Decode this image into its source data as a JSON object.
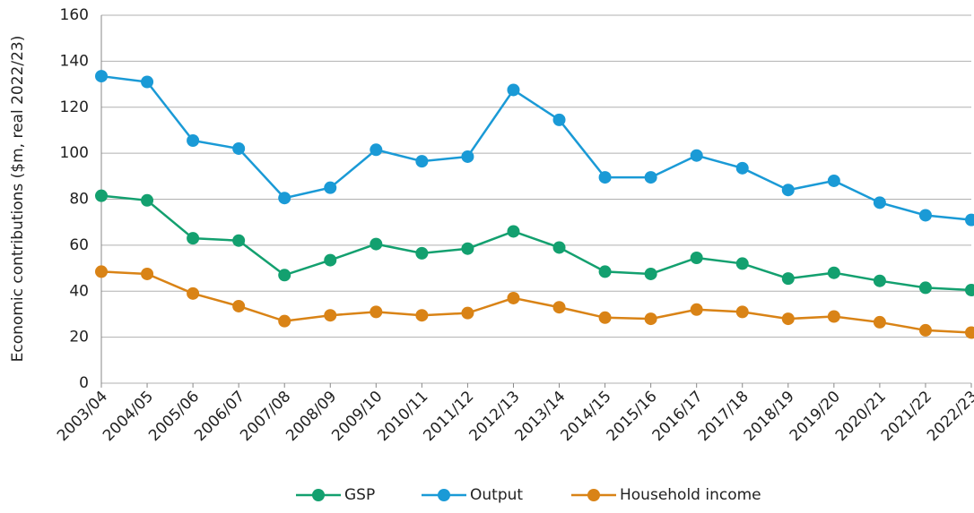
{
  "chart_data": {
    "type": "line",
    "y_label": "Economic contributions ($m, real 2022/23)",
    "categories": [
      "2003/04",
      "2004/05",
      "2005/06",
      "2006/07",
      "2007/08",
      "2008/09",
      "2009/10",
      "2010/11",
      "2011/12",
      "2012/13",
      "2013/14",
      "2014/15",
      "2015/16",
      "2016/17",
      "2017/18",
      "2018/19",
      "2019/20",
      "2020/21",
      "2021/22",
      "2022/23"
    ],
    "series": [
      {
        "name": "GSP",
        "color": "#13a06f",
        "values": [
          81.5,
          79.5,
          63,
          62,
          47,
          53.5,
          60.5,
          56.5,
          58.5,
          66,
          59,
          48.5,
          47.5,
          54.5,
          52,
          45.5,
          48,
          44.5,
          41.5,
          40.5
        ]
      },
      {
        "name": "Output",
        "color": "#1a9ad6",
        "values": [
          133.5,
          131,
          105.5,
          102,
          80.5,
          85,
          101.5,
          96.5,
          98.5,
          127.5,
          114.5,
          89.5,
          89.5,
          99,
          93.5,
          84,
          88,
          78.5,
          73,
          71
        ]
      },
      {
        "name": "Household income",
        "color": "#d98316",
        "values": [
          48.5,
          47.5,
          39,
          33.5,
          27,
          29.5,
          31,
          29.5,
          30.5,
          37,
          33,
          28.5,
          28,
          32,
          31,
          28,
          29,
          26.5,
          23,
          22
        ]
      }
    ],
    "ylim": [
      0,
      160
    ],
    "yticks": [
      0,
      20,
      40,
      60,
      80,
      100,
      120,
      140,
      160
    ],
    "grid": true,
    "legend": "bottom"
  }
}
